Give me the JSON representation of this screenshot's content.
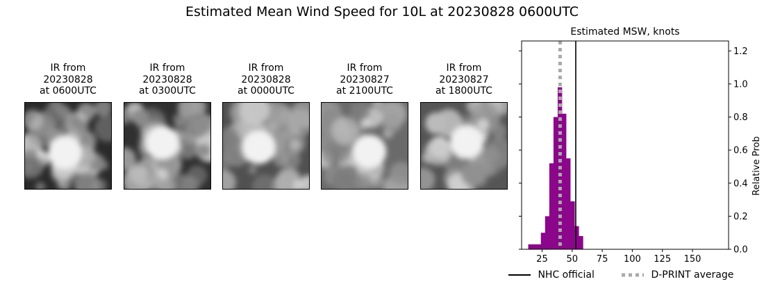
{
  "figure": {
    "title": "Estimated Mean Wind Speed for 10L at 20230828 0600UTC"
  },
  "panels": [
    {
      "line1": "IR from",
      "line2": "20230828",
      "line3": "at 0600UTC",
      "brightness": 0.85,
      "bg": "#2a2a2a"
    },
    {
      "line1": "IR from",
      "line2": "20230828",
      "line3": "at 0300UTC",
      "brightness": 0.75,
      "bg": "#303030"
    },
    {
      "line1": "IR from",
      "line2": "20230828",
      "line3": "at 0000UTC",
      "brightness": 0.7,
      "bg": "#505050"
    },
    {
      "line1": "IR from",
      "line2": "20230827",
      "line3": "at 2100UTC",
      "brightness": 0.8,
      "bg": "#6a6a6a"
    },
    {
      "line1": "IR from",
      "line2": "20230827",
      "line3": "at 1800UTC",
      "brightness": 0.8,
      "bg": "#555555"
    }
  ],
  "chart_data": {
    "type": "bar",
    "title": "Estimated MSW, knots",
    "xlabel": "",
    "ylabel": "Relative Prob",
    "xlim": [
      8,
      180
    ],
    "ylim": [
      0,
      1.26
    ],
    "xticks": [
      25,
      50,
      75,
      100,
      125,
      150
    ],
    "yticks": [
      0.0,
      0.2,
      0.4,
      0.6,
      0.8,
      1.0,
      1.2
    ],
    "ytick_labels": [
      "0.0",
      "0.2",
      "0.4",
      "0.6",
      "0.8",
      "1.0",
      "1.2"
    ],
    "y_axis_side": "right",
    "bar_width": 3.5,
    "bar_color": "#8b068b",
    "bins": [
      {
        "center": 15.25,
        "value": 0.03
      },
      {
        "center": 18.75,
        "value": 0.03
      },
      {
        "center": 22.25,
        "value": 0.03
      },
      {
        "center": 25.75,
        "value": 0.1
      },
      {
        "center": 29.25,
        "value": 0.2
      },
      {
        "center": 32.75,
        "value": 0.52
      },
      {
        "center": 36.25,
        "value": 0.8
      },
      {
        "center": 39.75,
        "value": 0.98
      },
      {
        "center": 43.25,
        "value": 0.82
      },
      {
        "center": 46.75,
        "value": 0.55
      },
      {
        "center": 50.25,
        "value": 0.29
      },
      {
        "center": 53.75,
        "value": 0.14
      },
      {
        "center": 57.25,
        "value": 0.08
      }
    ],
    "nhc_official": 53,
    "dprint_average": 40,
    "legend": [
      {
        "label": "NHC official",
        "color": "#000000",
        "style": "solid"
      },
      {
        "label": "D-PRINT average",
        "color": "#aaaaaa",
        "style": "dotted"
      }
    ],
    "legend_placement": "bottom"
  }
}
